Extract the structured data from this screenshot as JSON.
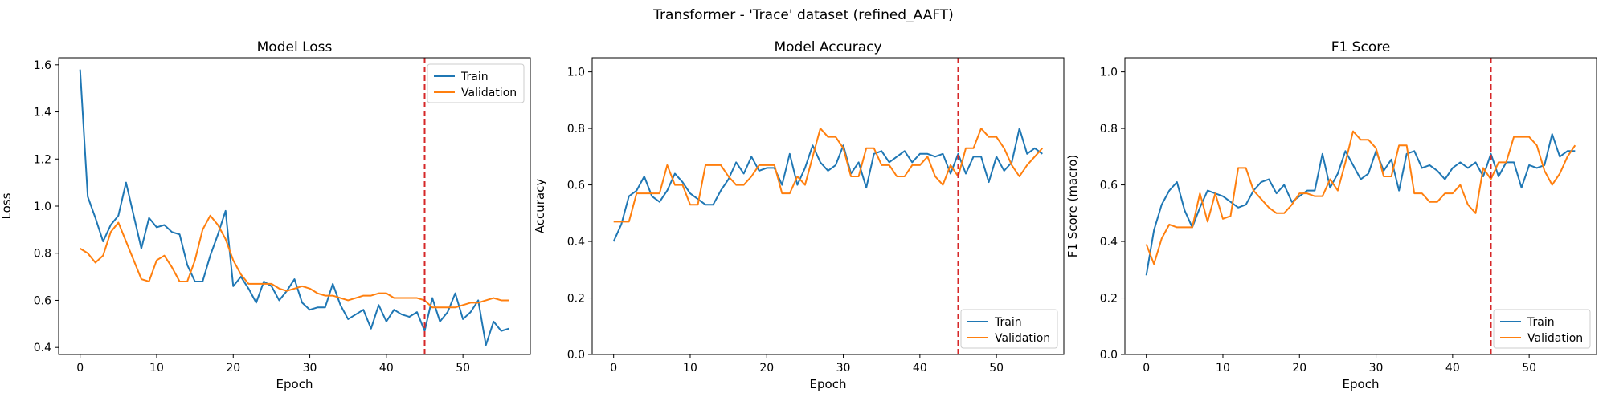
{
  "figure": {
    "title": "Transformer - 'Trace' dataset (refined_AAFT)"
  },
  "colors": {
    "train": "#1f77b4",
    "validation": "#ff7f0e",
    "marker": "#d62728"
  },
  "chart_data": [
    {
      "type": "line",
      "title": "Model Loss",
      "xlabel": "Epoch",
      "ylabel": "Loss",
      "xlim": [
        -2.8,
        58.8
      ],
      "ylim": [
        0.37,
        1.63
      ],
      "xticks": [
        0,
        10,
        20,
        30,
        40,
        50
      ],
      "yticks": [
        0.4,
        0.6,
        0.8,
        1.0,
        1.2,
        1.4,
        1.6
      ],
      "ytick_decimals": 1,
      "vline_x": 45,
      "legend_position": "upper-right",
      "series": [
        {
          "name": "Train",
          "color": "#1f77b4",
          "values": [
            1.58,
            1.04,
            0.95,
            0.85,
            0.92,
            0.96,
            1.1,
            0.96,
            0.82,
            0.95,
            0.91,
            0.92,
            0.89,
            0.88,
            0.75,
            0.68,
            0.68,
            0.79,
            0.88,
            0.98,
            0.66,
            0.7,
            0.65,
            0.59,
            0.68,
            0.66,
            0.6,
            0.64,
            0.69,
            0.59,
            0.56,
            0.57,
            0.57,
            0.67,
            0.58,
            0.52,
            0.54,
            0.56,
            0.48,
            0.58,
            0.51,
            0.56,
            0.54,
            0.53,
            0.55,
            0.47,
            0.61,
            0.51,
            0.55,
            0.63,
            0.52,
            0.55,
            0.6,
            0.41,
            0.51,
            0.47,
            0.48
          ]
        },
        {
          "name": "Validation",
          "color": "#ff7f0e",
          "values": [
            0.82,
            0.8,
            0.76,
            0.79,
            0.89,
            0.93,
            0.85,
            0.77,
            0.69,
            0.68,
            0.77,
            0.79,
            0.74,
            0.68,
            0.68,
            0.77,
            0.9,
            0.96,
            0.92,
            0.86,
            0.77,
            0.71,
            0.67,
            0.67,
            0.67,
            0.67,
            0.65,
            0.64,
            0.65,
            0.66,
            0.65,
            0.63,
            0.62,
            0.62,
            0.61,
            0.6,
            0.61,
            0.62,
            0.62,
            0.63,
            0.63,
            0.61,
            0.61,
            0.61,
            0.61,
            0.6,
            0.57,
            0.57,
            0.57,
            0.57,
            0.58,
            0.59,
            0.59,
            0.6,
            0.61,
            0.6,
            0.6
          ]
        }
      ]
    },
    {
      "type": "line",
      "title": "Model Accuracy",
      "xlabel": "Epoch",
      "ylabel": "Accuracy",
      "xlim": [
        -2.8,
        58.8
      ],
      "ylim": [
        0.0,
        1.05
      ],
      "xticks": [
        0,
        10,
        20,
        30,
        40,
        50
      ],
      "yticks": [
        0.0,
        0.2,
        0.4,
        0.6,
        0.8,
        1.0
      ],
      "ytick_decimals": 1,
      "vline_x": 45,
      "legend_position": "lower-right",
      "series": [
        {
          "name": "Train",
          "color": "#1f77b4",
          "values": [
            0.4,
            0.46,
            0.56,
            0.58,
            0.63,
            0.56,
            0.54,
            0.58,
            0.64,
            0.61,
            0.57,
            0.55,
            0.53,
            0.53,
            0.58,
            0.62,
            0.68,
            0.64,
            0.7,
            0.65,
            0.66,
            0.66,
            0.6,
            0.71,
            0.6,
            0.66,
            0.74,
            0.68,
            0.65,
            0.67,
            0.74,
            0.64,
            0.68,
            0.59,
            0.71,
            0.72,
            0.68,
            0.7,
            0.72,
            0.68,
            0.71,
            0.71,
            0.7,
            0.71,
            0.64,
            0.71,
            0.64,
            0.7,
            0.7,
            0.61,
            0.7,
            0.65,
            0.68,
            0.8,
            0.71,
            0.73,
            0.71
          ]
        },
        {
          "name": "Validation",
          "color": "#ff7f0e",
          "values": [
            0.47,
            0.47,
            0.47,
            0.57,
            0.57,
            0.57,
            0.57,
            0.67,
            0.6,
            0.6,
            0.53,
            0.53,
            0.67,
            0.67,
            0.67,
            0.63,
            0.6,
            0.6,
            0.63,
            0.67,
            0.67,
            0.67,
            0.57,
            0.57,
            0.63,
            0.6,
            0.7,
            0.8,
            0.77,
            0.77,
            0.73,
            0.63,
            0.63,
            0.73,
            0.73,
            0.67,
            0.67,
            0.63,
            0.63,
            0.67,
            0.67,
            0.7,
            0.63,
            0.6,
            0.67,
            0.63,
            0.73,
            0.73,
            0.8,
            0.77,
            0.77,
            0.73,
            0.67,
            0.63,
            0.67,
            0.7,
            0.73
          ]
        }
      ]
    },
    {
      "type": "line",
      "title": "F1 Score",
      "xlabel": "Epoch",
      "ylabel": "F1 Score (macro)",
      "xlim": [
        -2.8,
        58.8
      ],
      "ylim": [
        0.0,
        1.05
      ],
      "xticks": [
        0,
        10,
        20,
        30,
        40,
        50
      ],
      "yticks": [
        0.0,
        0.2,
        0.4,
        0.6,
        0.8,
        1.0
      ],
      "ytick_decimals": 1,
      "vline_x": 45,
      "legend_position": "lower-right",
      "series": [
        {
          "name": "Train",
          "color": "#1f77b4",
          "values": [
            0.28,
            0.44,
            0.53,
            0.58,
            0.61,
            0.51,
            0.45,
            0.52,
            0.58,
            0.57,
            0.56,
            0.54,
            0.52,
            0.53,
            0.58,
            0.61,
            0.62,
            0.57,
            0.6,
            0.54,
            0.56,
            0.58,
            0.58,
            0.71,
            0.59,
            0.64,
            0.72,
            0.67,
            0.62,
            0.64,
            0.72,
            0.65,
            0.69,
            0.58,
            0.71,
            0.72,
            0.66,
            0.67,
            0.65,
            0.62,
            0.66,
            0.68,
            0.66,
            0.68,
            0.63,
            0.71,
            0.63,
            0.68,
            0.68,
            0.59,
            0.67,
            0.66,
            0.67,
            0.78,
            0.7,
            0.72,
            0.72
          ]
        },
        {
          "name": "Validation",
          "color": "#ff7f0e",
          "values": [
            0.39,
            0.32,
            0.41,
            0.46,
            0.45,
            0.45,
            0.45,
            0.57,
            0.47,
            0.57,
            0.48,
            0.49,
            0.66,
            0.66,
            0.58,
            0.55,
            0.52,
            0.5,
            0.5,
            0.53,
            0.57,
            0.57,
            0.56,
            0.56,
            0.62,
            0.58,
            0.68,
            0.79,
            0.76,
            0.76,
            0.73,
            0.63,
            0.63,
            0.74,
            0.74,
            0.57,
            0.57,
            0.54,
            0.54,
            0.57,
            0.57,
            0.6,
            0.53,
            0.5,
            0.66,
            0.62,
            0.68,
            0.68,
            0.77,
            0.77,
            0.77,
            0.74,
            0.65,
            0.6,
            0.64,
            0.7,
            0.74
          ]
        }
      ]
    }
  ]
}
